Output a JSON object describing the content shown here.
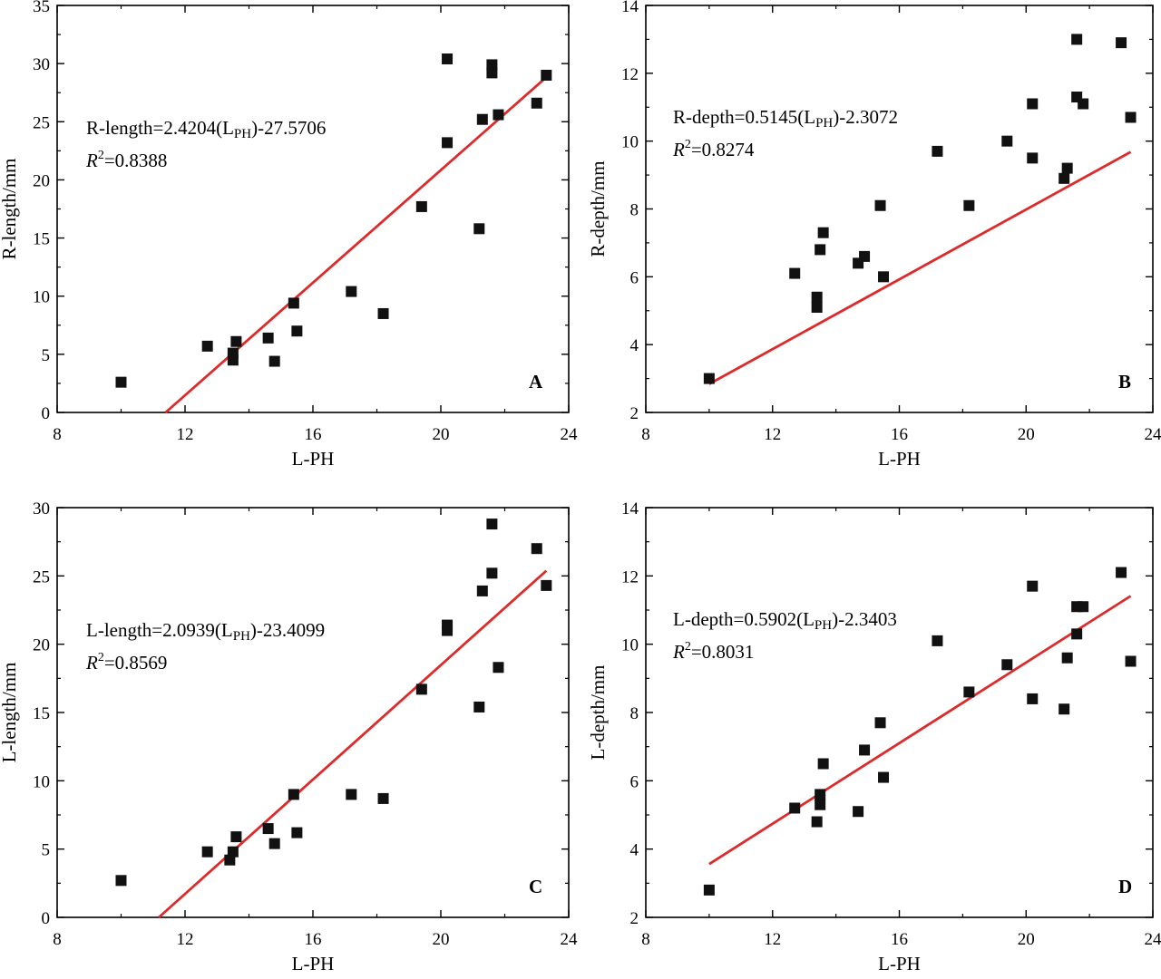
{
  "chart_data": [
    {
      "type": "scatter",
      "panel": "A",
      "xlabel": "L-PH",
      "ylabel": "R-length/mm",
      "xlim": [
        8,
        24
      ],
      "ylim": [
        0,
        35
      ],
      "xticks": [
        "8",
        "12",
        "16",
        "20",
        "24"
      ],
      "yticks": [
        "0",
        "5",
        "10",
        "15",
        "20",
        "25",
        "30",
        "35"
      ],
      "equation": {
        "lhs": "R-length=2.4204(L",
        "sub": "PH",
        "rhs": ")-27.5706",
        "r2_value": "=0.8388"
      },
      "fit": {
        "slope": 2.4204,
        "intercept": -27.5706
      },
      "points": [
        [
          10.0,
          2.6
        ],
        [
          12.7,
          5.7
        ],
        [
          13.5,
          4.5
        ],
        [
          13.5,
          5.1
        ],
        [
          13.6,
          6.1
        ],
        [
          14.6,
          6.4
        ],
        [
          14.8,
          4.4
        ],
        [
          15.4,
          9.4
        ],
        [
          15.5,
          7.0
        ],
        [
          17.2,
          10.4
        ],
        [
          18.2,
          8.5
        ],
        [
          19.4,
          17.7
        ],
        [
          20.2,
          23.2
        ],
        [
          20.2,
          30.4
        ],
        [
          21.2,
          15.8
        ],
        [
          21.3,
          25.2
        ],
        [
          21.6,
          29.9
        ],
        [
          21.6,
          29.2
        ],
        [
          21.8,
          25.6
        ],
        [
          23.0,
          26.6
        ],
        [
          23.3,
          29.0
        ]
      ]
    },
    {
      "type": "scatter",
      "panel": "B",
      "xlabel": "L-PH",
      "ylabel": "R-depth/mm",
      "xlim": [
        8,
        24
      ],
      "ylim": [
        2,
        14
      ],
      "xticks": [
        "8",
        "12",
        "16",
        "20",
        "24"
      ],
      "yticks": [
        "2",
        "4",
        "6",
        "8",
        "10",
        "12",
        "14"
      ],
      "equation": {
        "lhs": "R-depth=0.5145(L",
        "sub": "PH",
        "rhs": ")-2.3072",
        "r2_value": "=0.8274"
      },
      "fit": {
        "slope": 0.5145,
        "intercept": -2.3072
      },
      "points": [
        [
          10.0,
          3.0
        ],
        [
          12.7,
          6.1
        ],
        [
          13.4,
          5.1
        ],
        [
          13.4,
          5.4
        ],
        [
          13.5,
          6.8
        ],
        [
          13.6,
          7.3
        ],
        [
          14.7,
          6.4
        ],
        [
          14.9,
          6.6
        ],
        [
          15.4,
          8.1
        ],
        [
          15.5,
          6.0
        ],
        [
          17.2,
          9.7
        ],
        [
          18.2,
          8.1
        ],
        [
          19.4,
          10.0
        ],
        [
          20.2,
          9.5
        ],
        [
          20.2,
          11.1
        ],
        [
          21.2,
          8.9
        ],
        [
          21.3,
          9.2
        ],
        [
          21.6,
          13.0
        ],
        [
          21.6,
          11.3
        ],
        [
          21.8,
          11.1
        ],
        [
          23.0,
          12.9
        ],
        [
          23.3,
          10.7
        ]
      ]
    },
    {
      "type": "scatter",
      "panel": "C",
      "xlabel": "L-PH",
      "ylabel": "L-length/mm",
      "xlim": [
        8,
        24
      ],
      "ylim": [
        0,
        30
      ],
      "xticks": [
        "8",
        "12",
        "16",
        "20",
        "24"
      ],
      "yticks": [
        "0",
        "5",
        "10",
        "15",
        "20",
        "25",
        "30"
      ],
      "equation": {
        "lhs": "L-length=2.0939(L",
        "sub": "PH",
        "rhs": ")-23.4099",
        "r2_value": "=0.8569"
      },
      "fit": {
        "slope": 2.0939,
        "intercept": -23.4099
      },
      "points": [
        [
          10.0,
          2.7
        ],
        [
          12.7,
          4.8
        ],
        [
          13.4,
          4.2
        ],
        [
          13.5,
          4.8
        ],
        [
          13.6,
          5.9
        ],
        [
          14.6,
          6.5
        ],
        [
          14.8,
          5.4
        ],
        [
          15.4,
          9.0
        ],
        [
          15.5,
          6.2
        ],
        [
          17.2,
          9.0
        ],
        [
          18.2,
          8.7
        ],
        [
          19.4,
          16.7
        ],
        [
          20.2,
          21.0
        ],
        [
          20.2,
          21.4
        ],
        [
          21.2,
          15.4
        ],
        [
          21.3,
          23.9
        ],
        [
          21.6,
          25.2
        ],
        [
          21.6,
          28.8
        ],
        [
          21.8,
          18.3
        ],
        [
          23.0,
          27.0
        ],
        [
          23.3,
          24.3
        ]
      ]
    },
    {
      "type": "scatter",
      "panel": "D",
      "xlabel": "L-PH",
      "ylabel": "L-depth/mm",
      "xlim": [
        8,
        24
      ],
      "ylim": [
        2,
        14
      ],
      "xticks": [
        "8",
        "12",
        "16",
        "20",
        "24"
      ],
      "yticks": [
        "2",
        "4",
        "6",
        "8",
        "10",
        "12",
        "14"
      ],
      "equation": {
        "lhs": "L-depth=0.5902(L",
        "sub": "PH",
        "rhs": ")-2.3403",
        "r2_value": "=0.8031"
      },
      "fit": {
        "slope": 0.5902,
        "intercept": -2.3403
      },
      "points": [
        [
          10.0,
          2.8
        ],
        [
          12.7,
          5.2
        ],
        [
          13.4,
          4.8
        ],
        [
          13.5,
          5.3
        ],
        [
          13.5,
          5.6
        ],
        [
          13.6,
          6.5
        ],
        [
          14.7,
          5.1
        ],
        [
          14.9,
          6.9
        ],
        [
          15.4,
          7.7
        ],
        [
          15.5,
          6.1
        ],
        [
          17.2,
          10.1
        ],
        [
          18.2,
          8.6
        ],
        [
          19.4,
          9.4
        ],
        [
          20.2,
          8.4
        ],
        [
          20.2,
          11.7
        ],
        [
          21.2,
          8.1
        ],
        [
          21.3,
          9.6
        ],
        [
          21.6,
          10.3
        ],
        [
          21.6,
          11.1
        ],
        [
          21.8,
          11.1
        ],
        [
          23.0,
          12.1
        ],
        [
          23.3,
          9.5
        ]
      ]
    }
  ],
  "style": {
    "marker_color": "#111111",
    "fit_line_color": "#dd2a2a",
    "axis_color": "#000000"
  },
  "r2_symbol": "R",
  "r2_exponent": "2"
}
